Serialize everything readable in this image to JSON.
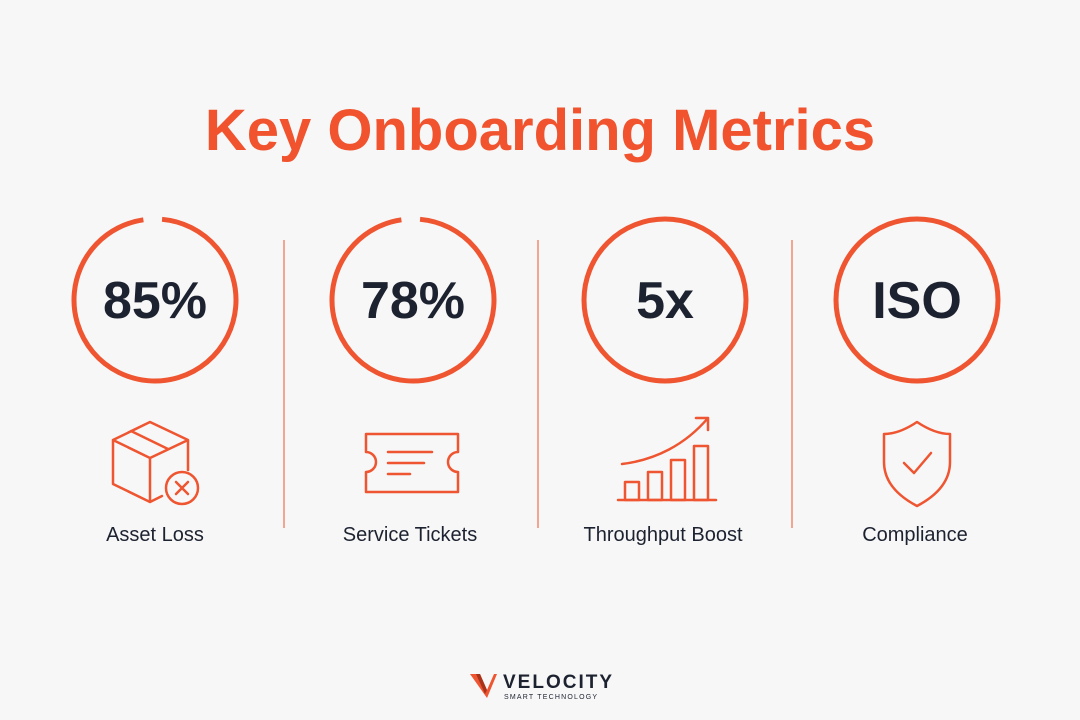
{
  "header": {
    "title": "Key Onboarding Metrics"
  },
  "metrics": [
    {
      "value": "85%",
      "label": "Asset Loss"
    },
    {
      "value": "78%",
      "label": "Service Tickets"
    },
    {
      "value": "5x",
      "label": "Throughput Boost"
    },
    {
      "value": "ISO",
      "label": "Compliance"
    }
  ],
  "footer": {
    "brand": "VELOCITY",
    "tagline": "SMART TECHNOLOGY"
  }
}
